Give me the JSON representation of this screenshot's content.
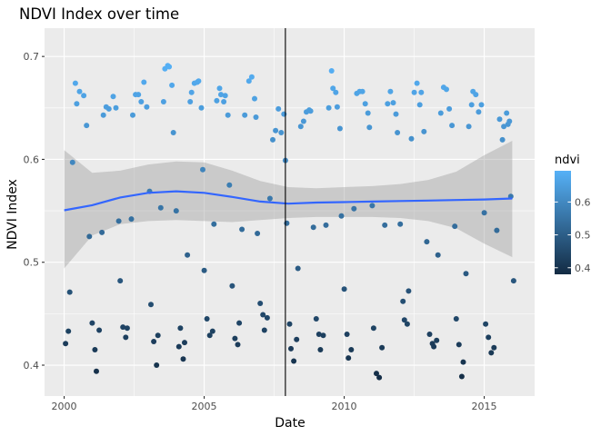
{
  "chart_data": {
    "type": "scatter",
    "title": "NDVI Index over time",
    "xlabel": "Date",
    "ylabel": "NDVI Index",
    "xlim": [
      1999.3,
      2016.8
    ],
    "ylim": [
      0.37,
      0.7275
    ],
    "x_ticks": [
      2000,
      2005,
      2010,
      2015
    ],
    "x_tick_labels": [
      "2000",
      "2005",
      "2010",
      "2015"
    ],
    "y_ticks": [
      0.4,
      0.5,
      0.6,
      0.7
    ],
    "y_tick_labels": [
      "0.4",
      "0.5",
      "0.6",
      "0.7"
    ],
    "grid": true,
    "vline_x": 2007.9,
    "legend": {
      "title": "ndvi",
      "position": "right",
      "color_range": [
        0.38,
        0.695
      ],
      "color_low": "#132b43",
      "color_high": "#56b1f7",
      "ticks": [
        0.4,
        0.5,
        0.6
      ],
      "tick_labels": [
        "0.4",
        "0.5",
        "0.6"
      ]
    },
    "smooth": {
      "color": "#3366ff",
      "band_color": "#999999",
      "x": [
        2000,
        2001,
        2002,
        2003,
        2004,
        2005,
        2006,
        2007,
        2008,
        2009,
        2010,
        2011,
        2012,
        2013,
        2014,
        2015,
        2016
      ],
      "y": [
        0.5505,
        0.5555,
        0.563,
        0.5675,
        0.569,
        0.5675,
        0.5635,
        0.559,
        0.557,
        0.558,
        0.5585,
        0.559,
        0.5595,
        0.56,
        0.5605,
        0.561,
        0.562
      ],
      "ymin": [
        0.494,
        0.526,
        0.537,
        0.54,
        0.541,
        0.54,
        0.539,
        0.541,
        0.543,
        0.544,
        0.544,
        0.544,
        0.543,
        0.54,
        0.533,
        0.518,
        0.505
      ],
      "ymax": [
        0.609,
        0.587,
        0.589,
        0.595,
        0.598,
        0.597,
        0.589,
        0.579,
        0.573,
        0.572,
        0.573,
        0.574,
        0.576,
        0.58,
        0.588,
        0.604,
        0.618
      ]
    },
    "points": [
      [
        2000.05,
        0.421
      ],
      [
        2000.15,
        0.433
      ],
      [
        2000.2,
        0.471
      ],
      [
        2000.3,
        0.597
      ],
      [
        2000.4,
        0.674
      ],
      [
        2000.45,
        0.654
      ],
      [
        2000.55,
        0.666
      ],
      [
        2000.7,
        0.662
      ],
      [
        2000.8,
        0.633
      ],
      [
        2000.9,
        0.525
      ],
      [
        2001.0,
        0.441
      ],
      [
        2001.1,
        0.415
      ],
      [
        2001.15,
        0.394
      ],
      [
        2001.25,
        0.434
      ],
      [
        2001.35,
        0.529
      ],
      [
        2001.4,
        0.643
      ],
      [
        2001.5,
        0.651
      ],
      [
        2001.6,
        0.649
      ],
      [
        2001.75,
        0.661
      ],
      [
        2001.85,
        0.65
      ],
      [
        2001.95,
        0.54
      ],
      [
        2002.0,
        0.482
      ],
      [
        2002.1,
        0.437
      ],
      [
        2002.2,
        0.427
      ],
      [
        2002.25,
        0.436
      ],
      [
        2002.4,
        0.542
      ],
      [
        2002.45,
        0.643
      ],
      [
        2002.55,
        0.663
      ],
      [
        2002.65,
        0.663
      ],
      [
        2002.75,
        0.656
      ],
      [
        2002.85,
        0.675
      ],
      [
        2002.95,
        0.651
      ],
      [
        2003.05,
        0.569
      ],
      [
        2003.1,
        0.459
      ],
      [
        2003.2,
        0.423
      ],
      [
        2003.3,
        0.4
      ],
      [
        2003.35,
        0.429
      ],
      [
        2003.45,
        0.553
      ],
      [
        2003.55,
        0.656
      ],
      [
        2003.6,
        0.688
      ],
      [
        2003.7,
        0.691
      ],
      [
        2003.75,
        0.69
      ],
      [
        2003.85,
        0.672
      ],
      [
        2003.9,
        0.626
      ],
      [
        2004.0,
        0.55
      ],
      [
        2004.1,
        0.418
      ],
      [
        2004.15,
        0.436
      ],
      [
        2004.25,
        0.406
      ],
      [
        2004.3,
        0.422
      ],
      [
        2004.4,
        0.507
      ],
      [
        2004.5,
        0.656
      ],
      [
        2004.55,
        0.665
      ],
      [
        2004.65,
        0.674
      ],
      [
        2004.75,
        0.675
      ],
      [
        2004.8,
        0.676
      ],
      [
        2004.9,
        0.65
      ],
      [
        2004.95,
        0.59
      ],
      [
        2005.0,
        0.492
      ],
      [
        2005.1,
        0.445
      ],
      [
        2005.2,
        0.429
      ],
      [
        2005.3,
        0.433
      ],
      [
        2005.35,
        0.537
      ],
      [
        2005.45,
        0.657
      ],
      [
        2005.55,
        0.669
      ],
      [
        2005.6,
        0.663
      ],
      [
        2005.7,
        0.656
      ],
      [
        2005.75,
        0.662
      ],
      [
        2005.85,
        0.643
      ],
      [
        2005.9,
        0.575
      ],
      [
        2006.0,
        0.477
      ],
      [
        2006.1,
        0.426
      ],
      [
        2006.2,
        0.42
      ],
      [
        2006.25,
        0.441
      ],
      [
        2006.35,
        0.532
      ],
      [
        2006.45,
        0.643
      ],
      [
        2006.6,
        0.676
      ],
      [
        2006.7,
        0.68
      ],
      [
        2006.8,
        0.659
      ],
      [
        2006.85,
        0.641
      ],
      [
        2006.9,
        0.528
      ],
      [
        2007.0,
        0.46
      ],
      [
        2007.1,
        0.449
      ],
      [
        2007.15,
        0.434
      ],
      [
        2007.25,
        0.446
      ],
      [
        2007.35,
        0.562
      ],
      [
        2007.45,
        0.619
      ],
      [
        2007.55,
        0.628
      ],
      [
        2007.65,
        0.649
      ],
      [
        2007.75,
        0.626
      ],
      [
        2007.85,
        0.644
      ],
      [
        2007.9,
        0.599
      ],
      [
        2007.95,
        0.538
      ],
      [
        2008.05,
        0.44
      ],
      [
        2008.1,
        0.416
      ],
      [
        2008.2,
        0.404
      ],
      [
        2008.3,
        0.425
      ],
      [
        2008.35,
        0.494
      ],
      [
        2008.45,
        0.632
      ],
      [
        2008.55,
        0.637
      ],
      [
        2008.65,
        0.646
      ],
      [
        2008.75,
        0.648
      ],
      [
        2008.8,
        0.647
      ],
      [
        2008.9,
        0.534
      ],
      [
        2009.0,
        0.445
      ],
      [
        2009.1,
        0.43
      ],
      [
        2009.15,
        0.415
      ],
      [
        2009.25,
        0.429
      ],
      [
        2009.35,
        0.536
      ],
      [
        2009.45,
        0.65
      ],
      [
        2009.55,
        0.686
      ],
      [
        2009.6,
        0.669
      ],
      [
        2009.7,
        0.665
      ],
      [
        2009.75,
        0.651
      ],
      [
        2009.85,
        0.63
      ],
      [
        2009.9,
        0.545
      ],
      [
        2010.0,
        0.474
      ],
      [
        2010.1,
        0.43
      ],
      [
        2010.15,
        0.407
      ],
      [
        2010.25,
        0.415
      ],
      [
        2010.35,
        0.552
      ],
      [
        2010.45,
        0.664
      ],
      [
        2010.55,
        0.666
      ],
      [
        2010.65,
        0.666
      ],
      [
        2010.75,
        0.654
      ],
      [
        2010.85,
        0.645
      ],
      [
        2010.9,
        0.631
      ],
      [
        2011.0,
        0.555
      ],
      [
        2011.05,
        0.436
      ],
      [
        2011.15,
        0.392
      ],
      [
        2011.25,
        0.388
      ],
      [
        2011.35,
        0.417
      ],
      [
        2011.45,
        0.536
      ],
      [
        2011.55,
        0.654
      ],
      [
        2011.65,
        0.666
      ],
      [
        2011.75,
        0.655
      ],
      [
        2011.85,
        0.644
      ],
      [
        2011.9,
        0.626
      ],
      [
        2012.0,
        0.537
      ],
      [
        2012.1,
        0.462
      ],
      [
        2012.15,
        0.444
      ],
      [
        2012.25,
        0.44
      ],
      [
        2012.3,
        0.472
      ],
      [
        2012.4,
        0.62
      ],
      [
        2012.5,
        0.665
      ],
      [
        2012.6,
        0.674
      ],
      [
        2012.7,
        0.653
      ],
      [
        2012.75,
        0.665
      ],
      [
        2012.85,
        0.627
      ],
      [
        2012.95,
        0.52
      ],
      [
        2013.05,
        0.43
      ],
      [
        2013.15,
        0.421
      ],
      [
        2013.2,
        0.418
      ],
      [
        2013.3,
        0.424
      ],
      [
        2013.35,
        0.507
      ],
      [
        2013.45,
        0.645
      ],
      [
        2013.55,
        0.67
      ],
      [
        2013.65,
        0.668
      ],
      [
        2013.75,
        0.649
      ],
      [
        2013.85,
        0.633
      ],
      [
        2013.95,
        0.535
      ],
      [
        2014.0,
        0.445
      ],
      [
        2014.1,
        0.42
      ],
      [
        2014.2,
        0.389
      ],
      [
        2014.25,
        0.403
      ],
      [
        2014.35,
        0.489
      ],
      [
        2014.45,
        0.632
      ],
      [
        2014.55,
        0.653
      ],
      [
        2014.6,
        0.666
      ],
      [
        2014.7,
        0.663
      ],
      [
        2014.8,
        0.646
      ],
      [
        2014.9,
        0.653
      ],
      [
        2015.0,
        0.548
      ],
      [
        2015.05,
        0.44
      ],
      [
        2015.15,
        0.427
      ],
      [
        2015.25,
        0.412
      ],
      [
        2015.35,
        0.417
      ],
      [
        2015.45,
        0.531
      ],
      [
        2015.55,
        0.639
      ],
      [
        2015.65,
        0.619
      ],
      [
        2015.7,
        0.632
      ],
      [
        2015.8,
        0.645
      ],
      [
        2015.85,
        0.634
      ],
      [
        2015.9,
        0.637
      ],
      [
        2015.95,
        0.564
      ],
      [
        2016.05,
        0.482
      ]
    ]
  }
}
